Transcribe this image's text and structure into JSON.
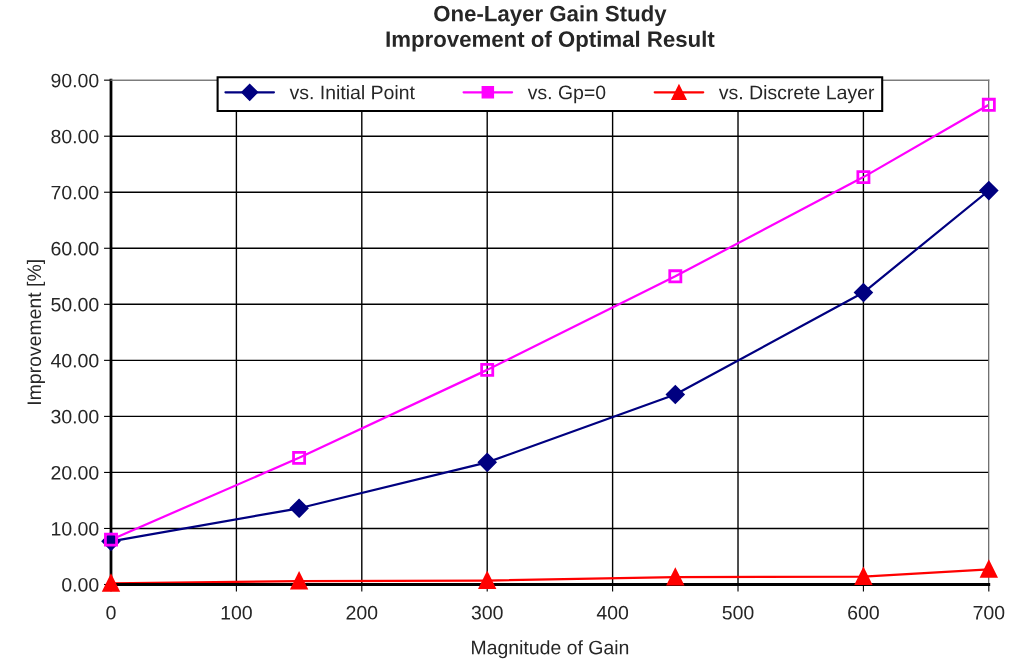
{
  "chart_data": {
    "type": "line",
    "title": "One-Layer Gain Study\nImprovement of Optimal Result",
    "xlabel": "Magnitude of Gain",
    "ylabel": "Improvement [%]",
    "x": [
      0,
      150,
      300,
      450,
      600,
      700
    ],
    "series": [
      {
        "name": "vs. Initial Point",
        "color": "#000080",
        "marker": "diamond",
        "values": [
          7.7,
          13.6,
          21.8,
          33.9,
          52.1,
          70.3
        ]
      },
      {
        "name": "vs. Gp=0",
        "color": "#ff00ff",
        "marker": "square",
        "values": [
          8.0,
          22.6,
          38.3,
          55.0,
          72.7,
          85.6
        ]
      },
      {
        "name": "vs. Discrete Layer",
        "color": "#ff0000",
        "marker": "triangle",
        "values": [
          0.2,
          0.6,
          0.7,
          1.3,
          1.4,
          2.7
        ]
      }
    ],
    "xlim": [
      0,
      700
    ],
    "xticks": [
      0,
      100,
      200,
      300,
      400,
      500,
      600,
      700
    ],
    "ylim": [
      0,
      90
    ],
    "yticks": [
      {
        "value": 0,
        "label": "0.00"
      },
      {
        "value": 10,
        "label": "10.00"
      },
      {
        "value": 20,
        "label": "20.00"
      },
      {
        "value": 30,
        "label": "30.00"
      },
      {
        "value": 40,
        "label": "40.00"
      },
      {
        "value": 50,
        "label": "50.00"
      },
      {
        "value": 60,
        "label": "60.00"
      },
      {
        "value": 70,
        "label": "70.00"
      },
      {
        "value": 80,
        "label": "80.00"
      },
      {
        "value": 90,
        "label": "90.00"
      }
    ],
    "grid": true,
    "legend": "top",
    "line_style": "solid"
  }
}
